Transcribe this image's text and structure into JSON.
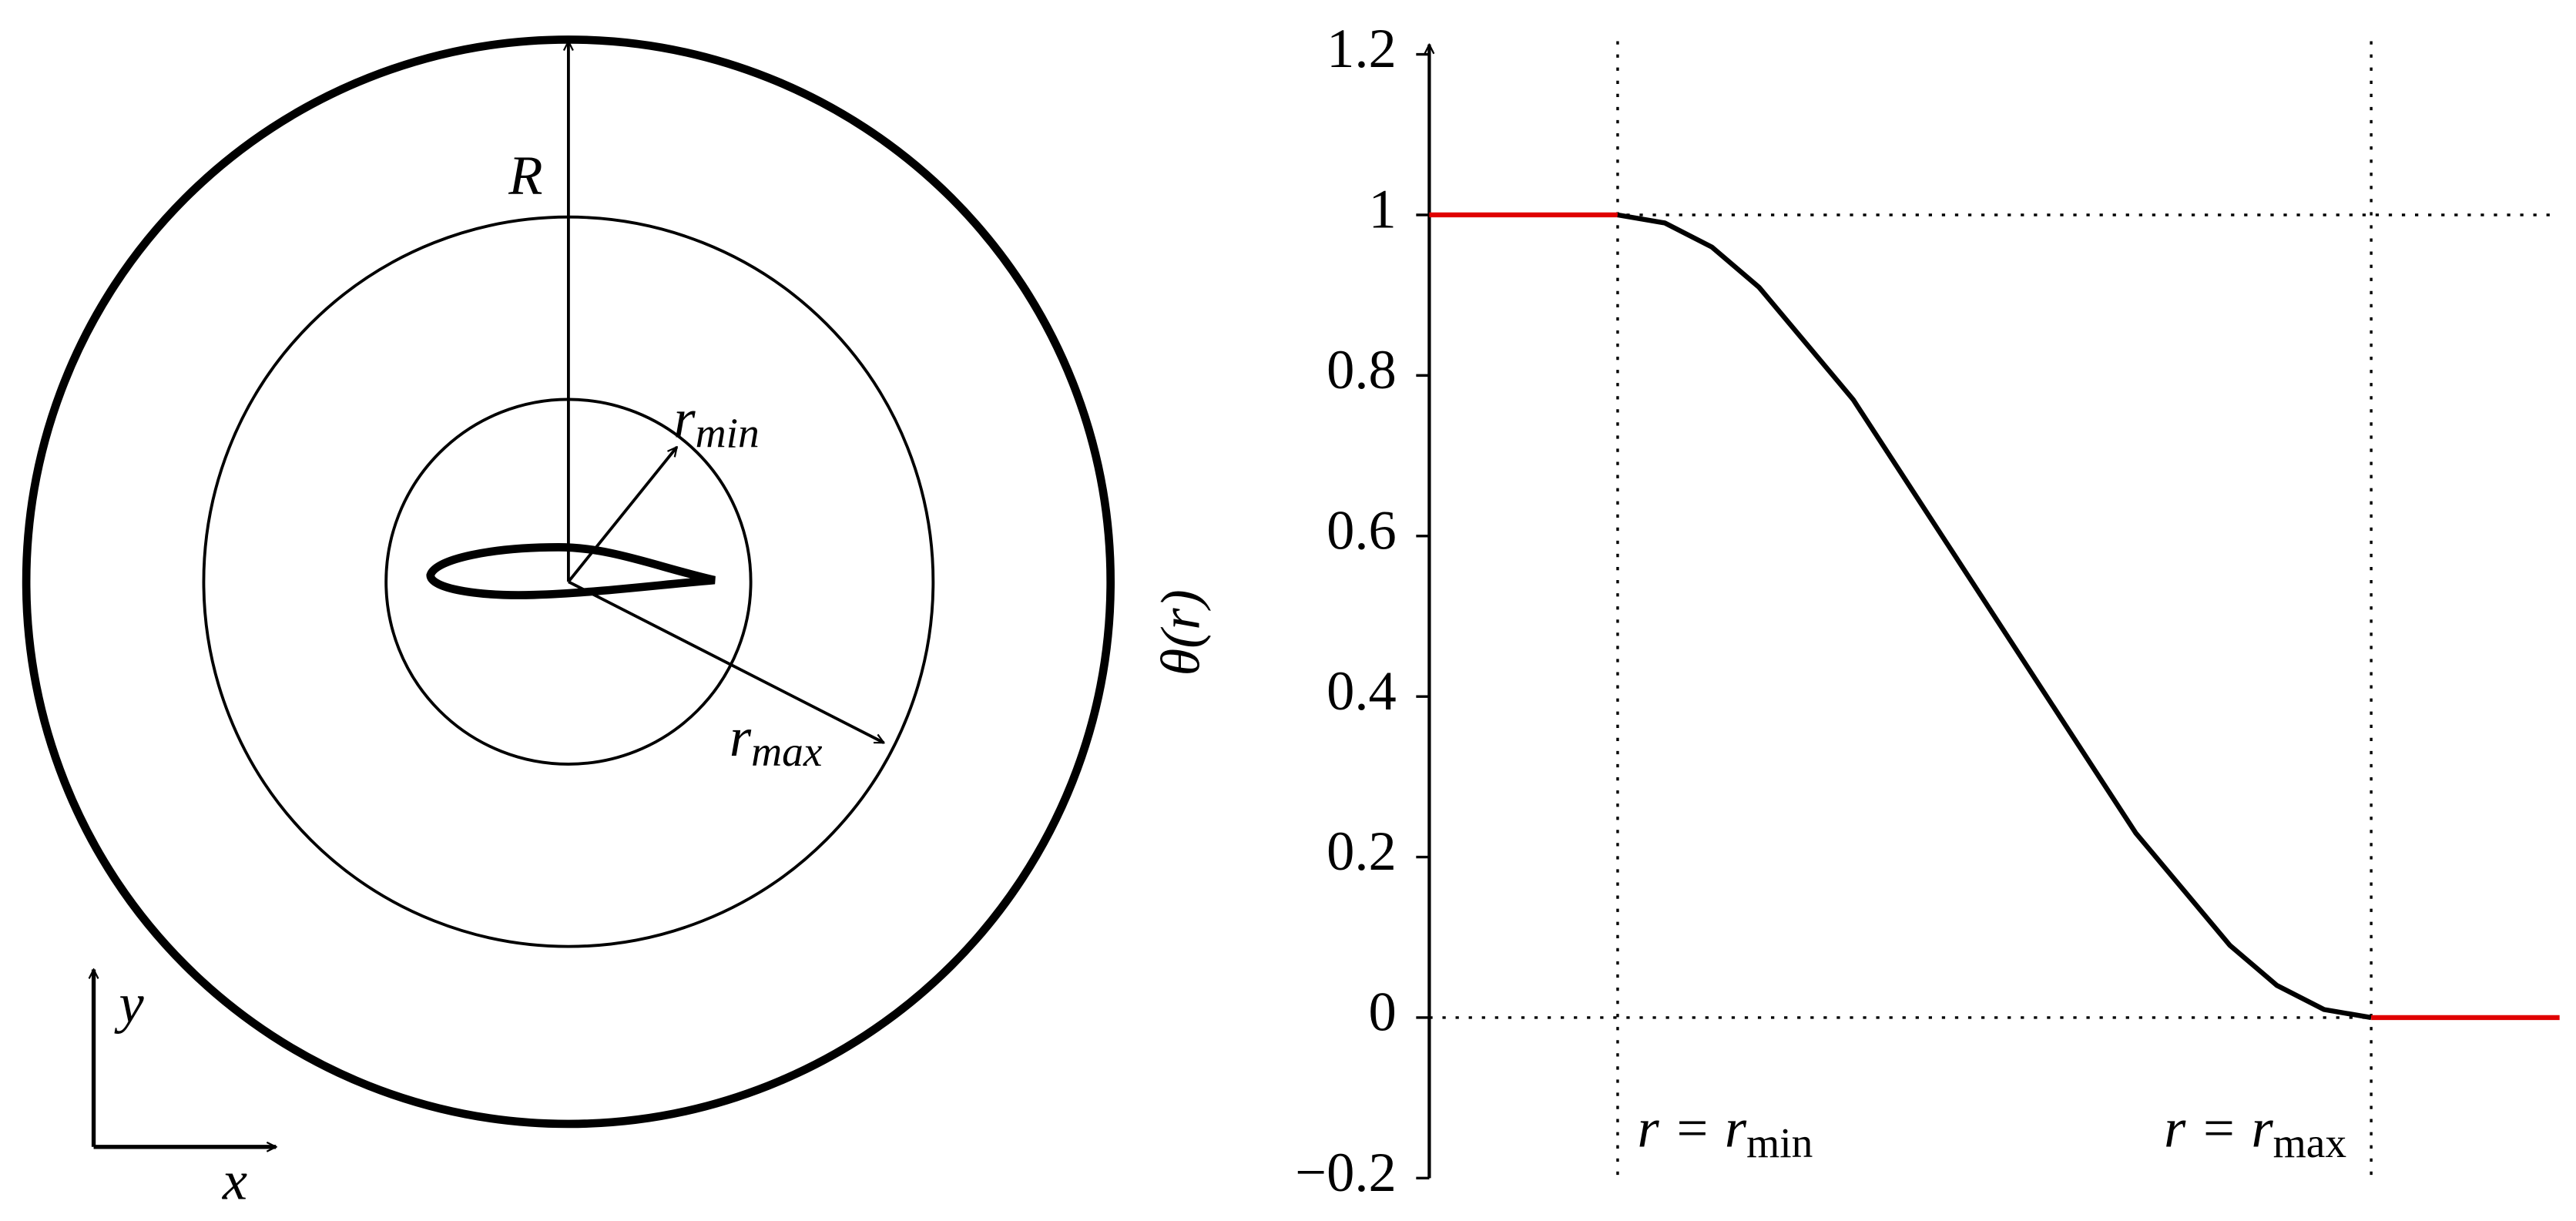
{
  "diagram": {
    "outer_label": "R",
    "inner_label": {
      "main": "r",
      "sub": "min"
    },
    "middle_label": {
      "main": "r",
      "sub": "max"
    },
    "x_axis": "x",
    "y_axis": "y"
  },
  "chart_data": {
    "type": "line",
    "ylabel": "θ(r)",
    "xlim": [
      0,
      6
    ],
    "ylim": [
      -0.2,
      1.2
    ],
    "yticks": [
      {
        "value": -0.2,
        "label": "−0.2"
      },
      0,
      0.2,
      0.4,
      0.6,
      0.8,
      1,
      1.2
    ],
    "hlines": [
      1,
      0
    ],
    "vlines": [
      1,
      5
    ],
    "annotations": [
      {
        "text": "r = r",
        "sub": "min"
      },
      {
        "text": "r = r",
        "sub": "max"
      }
    ],
    "series": [
      {
        "color": "#e00000",
        "x": [
          0,
          1
        ],
        "values": [
          1,
          1
        ]
      },
      {
        "color": "#000000",
        "x": [
          1,
          1.25,
          1.5,
          1.75,
          2,
          2.25,
          2.5,
          2.75,
          3,
          3.25,
          3.5,
          3.75,
          4,
          4.25,
          4.5,
          4.75,
          5
        ],
        "values": [
          1,
          0.99,
          0.96,
          0.91,
          0.84,
          0.77,
          0.68,
          0.59,
          0.5,
          0.41,
          0.32,
          0.23,
          0.16,
          0.09,
          0.04,
          0.01,
          0
        ]
      },
      {
        "color": "#e00000",
        "x": [
          5,
          6
        ],
        "values": [
          0,
          0
        ]
      }
    ]
  }
}
